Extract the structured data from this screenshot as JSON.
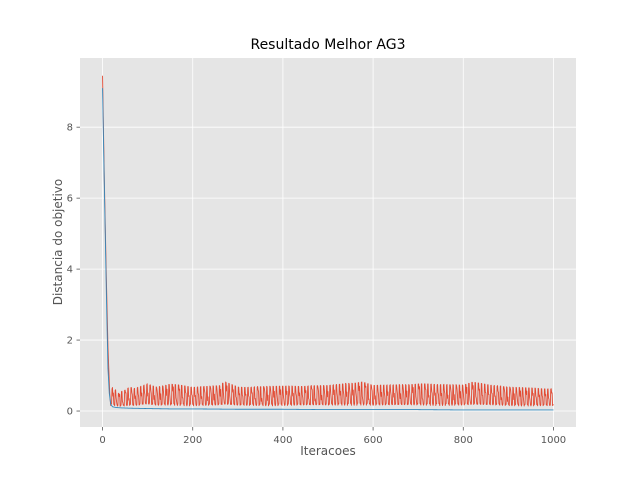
{
  "chart_data": {
    "type": "line",
    "title": "Resultado Melhor AG3",
    "xlabel": "Iteracoes",
    "ylabel": "Distancia do objetivo",
    "xlim": [
      -50,
      1050
    ],
    "ylim": [
      -0.45,
      9.95
    ],
    "xticks": [
      0,
      200,
      400,
      600,
      800,
      1000
    ],
    "xtick_labels": [
      "0",
      "200",
      "400",
      "600",
      "800",
      "1000"
    ],
    "yticks": [
      0,
      2,
      4,
      6,
      8
    ],
    "ytick_labels": [
      "0",
      "2",
      "4",
      "6",
      "8"
    ],
    "grid": true,
    "legend": "none",
    "style": "ggplot",
    "series": [
      {
        "color": "#E24A33",
        "x": [
          0,
          4,
          8,
          12,
          15,
          18,
          22,
          26,
          30,
          35,
          40,
          50,
          60,
          70,
          80,
          90,
          100,
          120,
          150,
          200,
          260,
          270,
          300,
          400,
          500,
          575,
          600,
          700,
          800,
          820,
          900,
          950,
          1000
        ],
        "y": [
          9.45,
          6.5,
          4.0,
          1.8,
          0.8,
          0.55,
          0.75,
          0.6,
          0.7,
          0.55,
          0.6,
          0.65,
          0.75,
          0.7,
          0.75,
          0.8,
          0.85,
          0.75,
          0.85,
          0.75,
          0.8,
          0.92,
          0.75,
          0.78,
          0.8,
          0.92,
          0.8,
          0.85,
          0.82,
          0.9,
          0.75,
          0.72,
          0.7
        ],
        "min_level": [
          0.45,
          0.3,
          0.2,
          0.12,
          0.08,
          0.1,
          0.1,
          0.08,
          0.08,
          0.06,
          0.06,
          0.06,
          0.06,
          0.06,
          0.06,
          0.08,
          0.08,
          0.06,
          0.06,
          0.06,
          0.06,
          0.06,
          0.06,
          0.06,
          0.06,
          0.06,
          0.06,
          0.06,
          0.06,
          0.06,
          0.06,
          0.06,
          0.06
        ],
        "oscillation_period": 7
      },
      {
        "color": "#348ABD",
        "x": [
          0,
          3,
          6,
          9,
          12,
          15,
          18,
          22,
          30,
          40,
          60,
          100,
          150,
          200,
          300,
          400,
          500,
          600,
          700,
          800,
          900,
          1000
        ],
        "y": [
          9.1,
          7.0,
          5.0,
          3.0,
          1.2,
          0.5,
          0.2,
          0.12,
          0.1,
          0.09,
          0.08,
          0.07,
          0.06,
          0.06,
          0.05,
          0.05,
          0.04,
          0.04,
          0.04,
          0.03,
          0.03,
          0.03
        ]
      }
    ]
  }
}
